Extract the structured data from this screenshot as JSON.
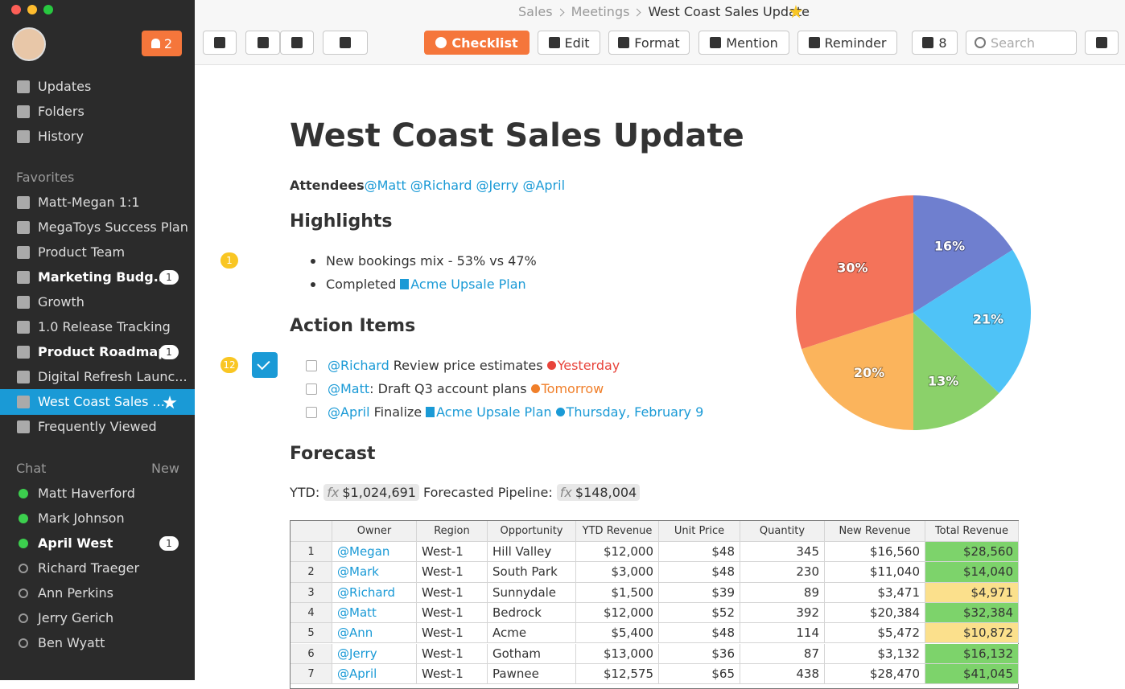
{
  "window": {
    "breadcrumb": [
      "Sales",
      "Meetings",
      "West Coast Sales Update"
    ]
  },
  "sidebar": {
    "notifications": "2",
    "nav": [
      "Updates",
      "Folders",
      "History"
    ],
    "favorites_title": "Favorites",
    "favorites": [
      {
        "label": "Matt-Megan 1:1"
      },
      {
        "label": "MegaToys Success Plan"
      },
      {
        "label": "Product Team"
      },
      {
        "label": "Marketing Budg...",
        "badge": "1"
      },
      {
        "label": "Growth"
      },
      {
        "label": "1.0 Release Tracking"
      },
      {
        "label": "Product Roadmap",
        "badge": "1"
      },
      {
        "label": "Digital Refresh Launc..."
      },
      {
        "label": "West Coast Sales ..."
      },
      {
        "label": "Frequently Viewed"
      }
    ],
    "chat_title": "Chat",
    "chat_new": "New",
    "chat": [
      {
        "label": "Matt Haverford",
        "online": true
      },
      {
        "label": "Mark Johnson",
        "online": true
      },
      {
        "label": "April West",
        "online": true,
        "badge": "1"
      },
      {
        "label": "Richard Traeger",
        "online": false
      },
      {
        "label": "Ann Perkins",
        "online": false
      },
      {
        "label": "Jerry Gerich",
        "online": false
      },
      {
        "label": "Ben Wyatt",
        "online": false
      }
    ]
  },
  "toolbar": {
    "checklist": "Checklist",
    "edit": "Edit",
    "format": "Format",
    "mention": "Mention",
    "reminder": "Reminder",
    "members": "8",
    "search": "Search"
  },
  "doc": {
    "title": "West Coast Sales Update",
    "attendees_label": "Attendees",
    "attendees": [
      "@Matt",
      "@Richard",
      "@Jerry",
      "@April"
    ],
    "highlights_title": "Highlights",
    "highlights_comments": "1",
    "highlight_1": "New bookings mix - 53% vs 47%",
    "highlight_2": "Completed",
    "highlight_2_link": "Acme Upsale Plan",
    "actions_title": "Action Items",
    "actions_comments": "12",
    "actions": [
      {
        "mention": "@Richard",
        "text": "Review price estimates",
        "due": "Yesterday",
        "due_color": "#e8433a"
      },
      {
        "mention": "@Matt",
        "text": ": Draft Q3 account plans",
        "due": "Tomorrow",
        "due_color": "#f07f2a"
      },
      {
        "mention": "@April",
        "text": "Finalize",
        "link": "Acme Upsale Plan",
        "due": "Thursday, February 9",
        "due_color": "#1a9ad6"
      }
    ],
    "forecast_title": "Forecast",
    "ytd_label": "YTD:",
    "ytd_value": "$1,024,691",
    "pipeline_label": "Forecasted Pipeline:",
    "pipeline_value": "$148,004",
    "formula_icon": "fx"
  },
  "table": {
    "header": [
      "Owner",
      "Region",
      "Opportunity",
      "YTD Revenue",
      "Unit Price",
      "Quantity",
      "New Revenue",
      "Total Revenue"
    ],
    "rows": [
      [
        "1",
        "@Megan",
        "West-1",
        "Hill Valley",
        "$12,000",
        "$48",
        "345",
        "$16,560",
        "$28,560"
      ],
      [
        "2",
        "@Mark",
        "West-1",
        "South Park",
        "$3,000",
        "$48",
        "230",
        "$11,040",
        "$14,040"
      ],
      [
        "3",
        "@Richard",
        "West-1",
        "Sunnydale",
        "$1,500",
        "$39",
        "89",
        "$3,471",
        "$4,971"
      ],
      [
        "4",
        "@Matt",
        "West-1",
        "Bedrock",
        "$12,000",
        "$52",
        "392",
        "$20,384",
        "$32,384"
      ],
      [
        "5",
        "@Ann",
        "West-1",
        "Acme",
        "$5,400",
        "$48",
        "114",
        "$5,472",
        "$10,872"
      ],
      [
        "6",
        "@Jerry",
        "West-1",
        "Gotham",
        "$13,000",
        "$36",
        "87",
        "$3,132",
        "$16,132"
      ],
      [
        "7",
        "@April",
        "West-1",
        "Pawnee",
        "$12,575",
        "$65",
        "438",
        "$28,470",
        "$41,045"
      ]
    ],
    "total_highlight": [
      "#7dd36b",
      "#7dd36b",
      "#fbe08c",
      "#7dd36b",
      "#fbe08c",
      "#7dd36b",
      "#7dd36b"
    ]
  },
  "chart_data": {
    "type": "pie",
    "values": [
      16,
      21,
      13,
      20,
      30
    ],
    "value_labels": [
      "16%",
      "21%",
      "13%",
      "20%",
      "30%"
    ],
    "colors": [
      "#6f7fcf",
      "#4fc3f7",
      "#8bd16a",
      "#fbb45c",
      "#f4735a"
    ]
  }
}
